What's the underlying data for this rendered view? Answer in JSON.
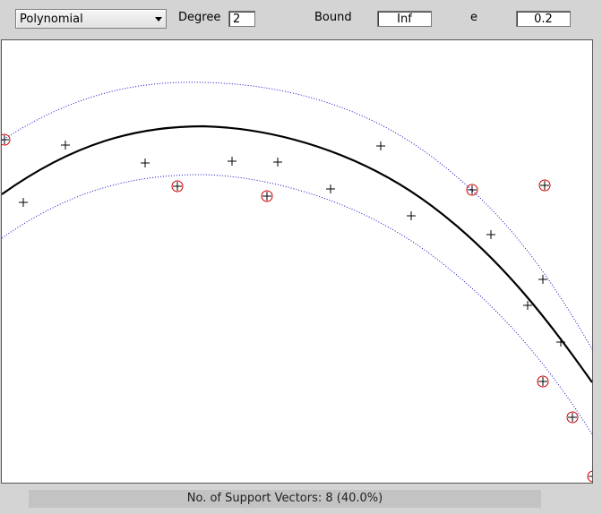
{
  "toolbar": {
    "kernel_select": {
      "value": "Polynomial"
    },
    "degree": {
      "label": "Degree",
      "value": "2"
    },
    "bound": {
      "label": "Bound",
      "value": "Inf"
    },
    "epsilon": {
      "label": "e",
      "value": "0.2"
    }
  },
  "status": {
    "text": "No. of Support Vectors: 8 (40.0%)"
  },
  "colors": {
    "regression_curve": "#000000",
    "margin_lines": "#1010c8",
    "support_vector_circle": "#d40000",
    "data_point": "#000000"
  },
  "icons": {
    "data_marker": "plus-icon",
    "support_vector_marker": "circle-plus-icon"
  }
}
